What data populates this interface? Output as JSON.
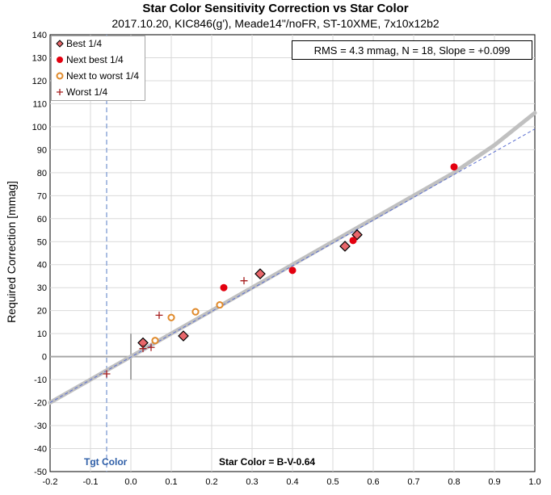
{
  "title": "Star Color Sensitivity Correction vs Star Color",
  "subtitle": "2017.10.20, KIC846(g'), Meade14\"/noFR, ST-10XME, 7x10x12b2",
  "stats_box": "RMS = 4.3 mmag, N = 18, Slope = +0.099",
  "tgt_label": "Tgt Color",
  "x_annotation": "Star Color = B-V-0.64",
  "chart_data": {
    "type": "scatter",
    "title": "Star Color Sensitivity Correction vs Star Color",
    "xlabel": "",
    "ylabel": "Required Correction [mmag]",
    "xlim": [
      -0.2,
      1.0
    ],
    "ylim": [
      -50,
      140
    ],
    "xticks": [
      "-0.2",
      "-0.1",
      "0.0",
      "0.1",
      "0.2",
      "0.3",
      "0.4",
      "0.5",
      "0.6",
      "0.7",
      "0.8",
      "0.9",
      "1.0"
    ],
    "yticks": [
      "-50",
      "-40",
      "-30",
      "-20",
      "-10",
      "0",
      "10",
      "20",
      "30",
      "40",
      "50",
      "60",
      "70",
      "80",
      "90",
      "100",
      "110",
      "120",
      "130",
      "140"
    ],
    "grid": true,
    "legend_position": "top-left",
    "target_color_x": -0.06,
    "series": [
      {
        "name": "Best 1/4",
        "marker": "diamond",
        "color": "#e8676b",
        "x": [
          0.03,
          0.13,
          0.32,
          0.53,
          0.56
        ],
        "y": [
          6,
          9,
          36,
          48,
          53
        ]
      },
      {
        "name": "Next best 1/4",
        "marker": "dot",
        "color": "#e3000f",
        "x": [
          0.23,
          0.4,
          0.55,
          0.8
        ],
        "y": [
          30,
          37.5,
          50.5,
          82.5
        ]
      },
      {
        "name": "Next to worst 1/4",
        "marker": "ring",
        "color": "#e08a2b",
        "x": [
          0.06,
          0.1,
          0.16,
          0.22
        ],
        "y": [
          7,
          17,
          19.5,
          22.5
        ]
      },
      {
        "name": "Worst 1/4",
        "marker": "plus",
        "color": "#a61d1d",
        "x": [
          -0.06,
          0.03,
          0.05,
          0.07,
          0.28
        ],
        "y": [
          -7.5,
          3.5,
          4,
          18,
          33
        ]
      }
    ],
    "fit_curve": {
      "color": "#c0c0c0",
      "x": [
        -0.2,
        0.0,
        0.2,
        0.4,
        0.6,
        0.8,
        0.9,
        1.0
      ],
      "y": [
        -20,
        0,
        20,
        40,
        60,
        80,
        92,
        106
      ]
    },
    "linear_fit": {
      "color": "#5b6fd1",
      "x": [
        -0.2,
        1.0
      ],
      "y": [
        -20,
        99
      ]
    }
  }
}
